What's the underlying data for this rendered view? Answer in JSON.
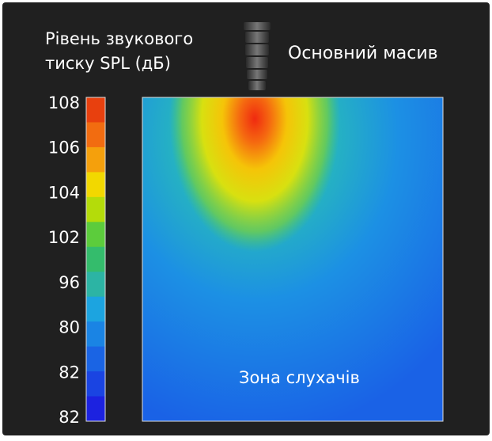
{
  "legend": {
    "title_lines": [
      "Рівень звукового",
      "тиску SPL (дБ)"
    ],
    "labels": [
      "108",
      "106",
      "104",
      "102",
      "96",
      "80",
      "82",
      "82"
    ],
    "colors": [
      "#e8400e",
      "#f26c10",
      "#f5a00c",
      "#f2d800",
      "#b4dc0a",
      "#5ccc3c",
      "#34bc6c",
      "#2cb4a4",
      "#1ca4e0",
      "#1a84e4",
      "#1a64e4",
      "#1a44e2",
      "#1c22e0"
    ]
  },
  "array_label": "Основний масив",
  "zone_label": "Зона слухачів"
}
